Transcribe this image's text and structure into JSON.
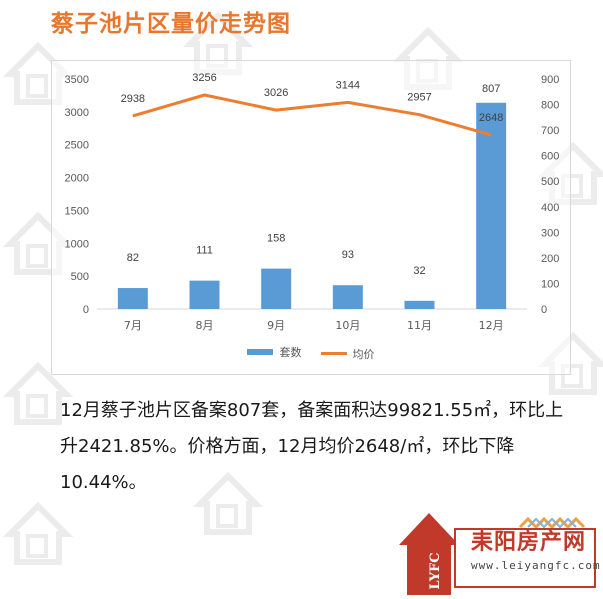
{
  "page_title": "蔡子池片区量价走势图",
  "chart_data": {
    "type": "bar",
    "categories": [
      "7月",
      "8月",
      "9月",
      "10月",
      "11月",
      "12月"
    ],
    "series": [
      {
        "name": "套数",
        "type": "bar",
        "axis": "left",
        "values": [
          82,
          111,
          158,
          93,
          32,
          807
        ]
      },
      {
        "name": "均价",
        "type": "line",
        "axis": "right",
        "values": [
          2938,
          3256,
          3026,
          3144,
          2957,
          2648
        ]
      }
    ],
    "left_axis": {
      "min": 0,
      "max": 3500,
      "ticks": [
        "0",
        "500",
        "1000",
        "1500",
        "2000",
        "2500",
        "3000",
        "3500"
      ]
    },
    "right_axis": {
      "min": 0,
      "max": 900,
      "ticks": [
        "0",
        "100",
        "200",
        "300",
        "400",
        "500",
        "600",
        "700",
        "800",
        "900"
      ]
    },
    "legend_position": "bottom",
    "grid": false,
    "colors": {
      "bar": "#5b9bd5",
      "line": "#ed7d31"
    }
  },
  "body_text": "12月蔡子池片区备案807套，备案面积达99821.55㎡，环比上升2421.85%。价格方面，12月均价2648/㎡，环比下降10.44%。",
  "logo": {
    "name": "耒阳房产网",
    "url": "www.leiyangfc.com",
    "mark": "LYFC"
  },
  "theme": {
    "title_color": "#e8772e",
    "logo_red": "#c0392b"
  }
}
